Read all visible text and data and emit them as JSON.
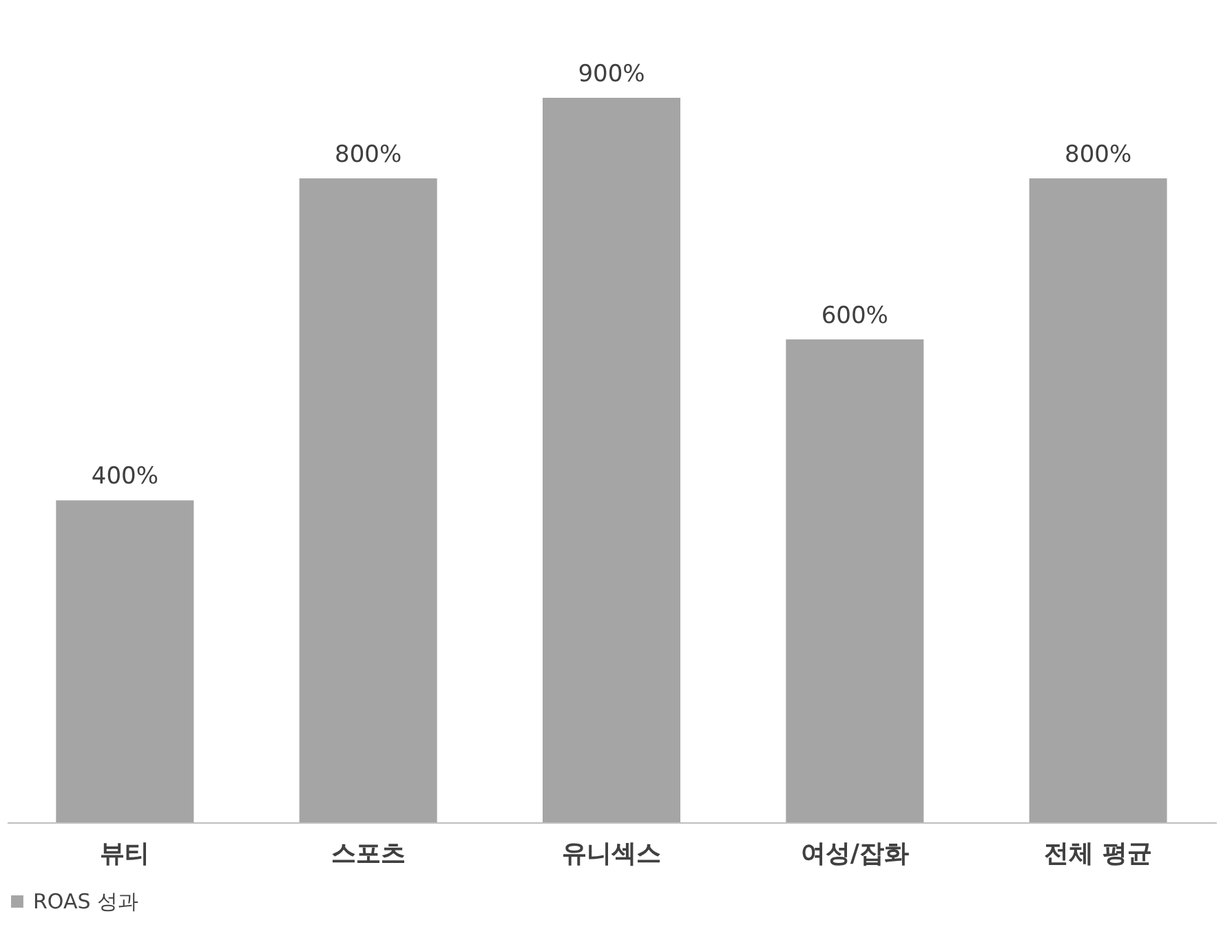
{
  "chart_data": {
    "type": "bar",
    "categories": [
      "뷰티",
      "스포츠",
      "유니섹스",
      "여성/잡화",
      "전체 평균"
    ],
    "series": [
      {
        "name": "ROAS 성과",
        "color": "#a5a5a5",
        "values": [
          400,
          800,
          900,
          600,
          800
        ],
        "value_labels": [
          "400%",
          "800%",
          "900%",
          "600%",
          "800%"
        ]
      }
    ],
    "legend": "bottom",
    "grid": false
  }
}
